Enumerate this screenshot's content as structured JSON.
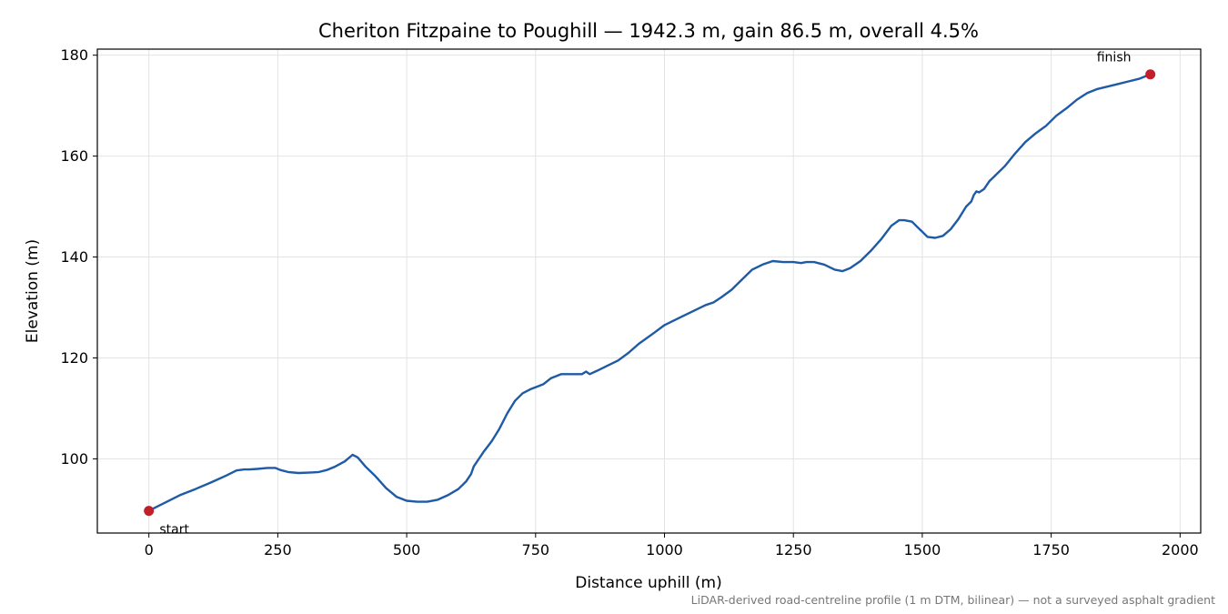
{
  "chart_data": {
    "type": "line",
    "title": "Cheriton Fitzpaine to Poughill — 1942.3 m, gain 86.5 m, overall 4.5%",
    "xlabel": "Distance uphill (m)",
    "ylabel": "Elevation (m)",
    "xlim": [
      -100,
      2040
    ],
    "ylim": [
      85.3,
      181.2
    ],
    "xticks": [
      0,
      250,
      500,
      750,
      1000,
      1250,
      1500,
      1750,
      2000
    ],
    "yticks": [
      100,
      120,
      140,
      160,
      180
    ],
    "grid": true,
    "series": [
      {
        "color": "#1f5aa6",
        "x": [
          0,
          15,
          35,
          60,
          90,
          120,
          150,
          170,
          185,
          195,
          210,
          230,
          245,
          255,
          270,
          290,
          315,
          330,
          345,
          360,
          380,
          395,
          405,
          420,
          440,
          460,
          480,
          500,
          520,
          540,
          560,
          580,
          600,
          615,
          625,
          630,
          640,
          650,
          665,
          680,
          695,
          710,
          725,
          740,
          750,
          765,
          780,
          800,
          820,
          840,
          848,
          855,
          870,
          890,
          910,
          930,
          950,
          980,
          1000,
          1030,
          1060,
          1080,
          1095,
          1110,
          1130,
          1150,
          1170,
          1190,
          1210,
          1230,
          1250,
          1265,
          1275,
          1290,
          1310,
          1330,
          1345,
          1360,
          1380,
          1400,
          1420,
          1440,
          1455,
          1465,
          1480,
          1490,
          1500,
          1510,
          1525,
          1540,
          1555,
          1570,
          1585,
          1595,
          1600,
          1605,
          1610,
          1620,
          1630,
          1640,
          1660,
          1680,
          1700,
          1720,
          1740,
          1760,
          1780,
          1800,
          1820,
          1840,
          1860,
          1880,
          1900,
          1920,
          1942.3
        ],
        "y": [
          89.7,
          90.5,
          91.5,
          92.8,
          94.0,
          95.3,
          96.7,
          97.7,
          97.9,
          97.9,
          98.0,
          98.2,
          98.2,
          97.8,
          97.4,
          97.2,
          97.3,
          97.4,
          97.8,
          98.4,
          99.5,
          100.8,
          100.3,
          98.5,
          96.5,
          94.2,
          92.5,
          91.7,
          91.5,
          91.5,
          91.9,
          92.8,
          94.0,
          95.5,
          97.0,
          98.5,
          100.0,
          101.5,
          103.5,
          106.0,
          109.0,
          111.5,
          113.0,
          113.8,
          114.2,
          114.8,
          116.0,
          116.8,
          116.8,
          116.8,
          117.3,
          116.8,
          117.5,
          118.5,
          119.5,
          121.0,
          122.8,
          125.0,
          126.5,
          128.0,
          129.5,
          130.5,
          131.0,
          132.0,
          133.5,
          135.5,
          137.5,
          138.5,
          139.2,
          139.0,
          139.0,
          138.8,
          139.0,
          139.0,
          138.5,
          137.5,
          137.2,
          137.8,
          139.2,
          141.2,
          143.5,
          146.2,
          147.3,
          147.3,
          147.0,
          146.0,
          145.0,
          144.0,
          143.8,
          144.2,
          145.5,
          147.5,
          150.0,
          151.0,
          152.3,
          153.0,
          152.8,
          153.5,
          155.0,
          156.0,
          158.0,
          160.5,
          162.8,
          164.5,
          166.0,
          168.0,
          169.5,
          171.2,
          172.5,
          173.3,
          173.8,
          174.3,
          174.8,
          175.3,
          176.2
        ]
      }
    ],
    "markers": [
      {
        "label": "start",
        "x": 0,
        "y": 89.7,
        "color": "#c21f2b"
      },
      {
        "label": "finish",
        "x": 1942.3,
        "y": 176.2,
        "color": "#c21f2b"
      }
    ],
    "footnote": "LiDAR-derived road-centreline profile (1 m DTM, bilinear) — not a surveyed asphalt gradient"
  }
}
